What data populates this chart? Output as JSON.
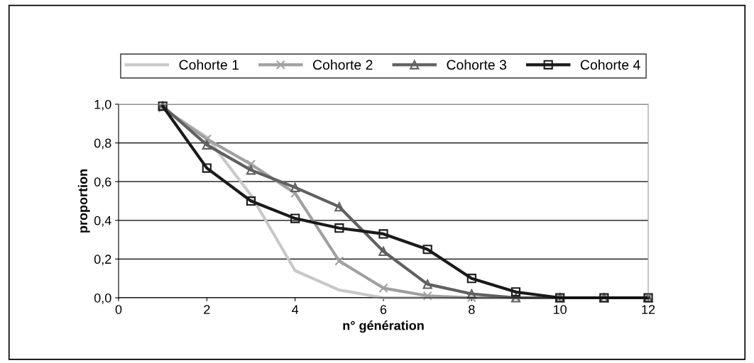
{
  "chart_data": {
    "type": "line",
    "xlabel": "n° génération",
    "ylabel": "proportion",
    "x": [
      1,
      2,
      3,
      4,
      5,
      6,
      7,
      8,
      9,
      10,
      11,
      12
    ],
    "series": [
      {
        "name": "Cohorte 1",
        "color": "#c8c8c8",
        "marker": "none",
        "values": [
          0.98,
          0.83,
          0.53,
          0.14,
          0.04,
          0.0,
          0.0,
          0.0,
          0.0,
          0.0,
          0.0,
          0.0
        ]
      },
      {
        "name": "Cohorte 2",
        "color": "#a0a0a0",
        "marker": "cross",
        "values": [
          0.98,
          0.82,
          0.69,
          0.54,
          0.19,
          0.05,
          0.01,
          0.0,
          0.0,
          0.0,
          0.0,
          0.0
        ]
      },
      {
        "name": "Cohorte 3",
        "color": "#606060",
        "marker": "triangle",
        "values": [
          0.99,
          0.79,
          0.66,
          0.57,
          0.47,
          0.24,
          0.07,
          0.02,
          0.0,
          0.0,
          0.0,
          0.0
        ]
      },
      {
        "name": "Cohorte 4",
        "color": "#1a1a1a",
        "marker": "square",
        "values": [
          0.99,
          0.67,
          0.5,
          0.41,
          0.36,
          0.33,
          0.25,
          0.1,
          0.03,
          0.0,
          0.0,
          0.0
        ]
      }
    ],
    "xlim": [
      0,
      12
    ],
    "xticks": [
      0,
      2,
      4,
      6,
      8,
      10,
      12
    ],
    "ylim": [
      0,
      1
    ],
    "yticks": [
      {
        "value": 0,
        "label": "0,0"
      },
      {
        "value": 0.2,
        "label": "0,2"
      },
      {
        "value": 0.4,
        "label": "0,4"
      },
      {
        "value": 0.6,
        "label": "0,6"
      },
      {
        "value": 0.8,
        "label": "0,8"
      },
      {
        "value": 1,
        "label": "1,0"
      }
    ],
    "grid": "y",
    "legend": "top",
    "line_style": "solid"
  }
}
